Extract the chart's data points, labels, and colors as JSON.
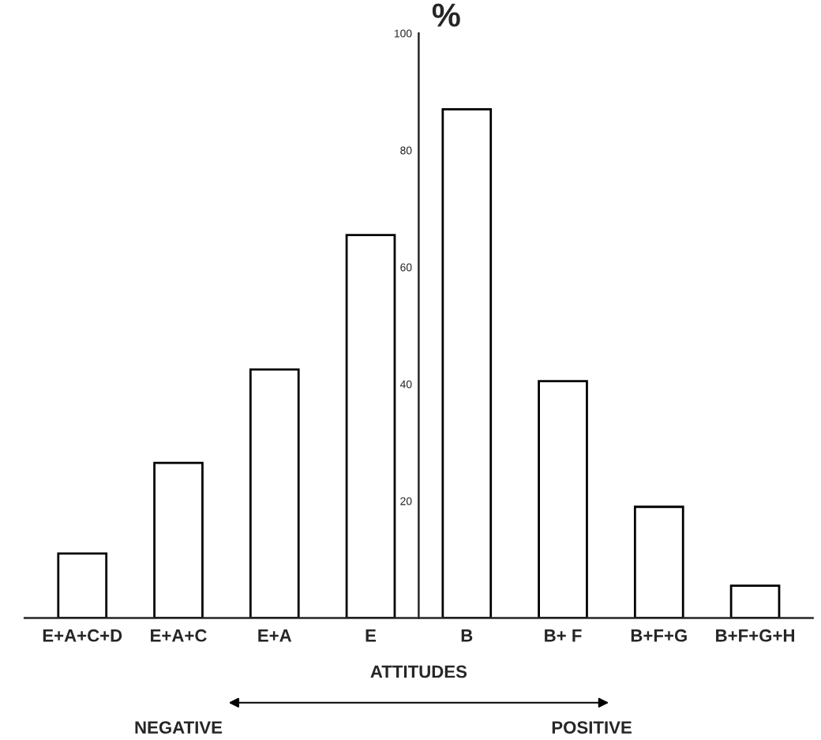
{
  "chart_data": {
    "type": "bar",
    "categories": [
      "E+A+C+D",
      "E+A+C",
      "E+A",
      "E",
      "B",
      "B+ F",
      "B+F+G",
      "B+F+G+H"
    ],
    "values": [
      11,
      26.5,
      42.5,
      65.5,
      87,
      40.5,
      19,
      5.5
    ],
    "color": "#ffffff",
    "ylim": [
      0,
      100
    ],
    "yticks": [
      20,
      40,
      60,
      80,
      100
    ],
    "xlabel": "ATTITUDES",
    "ylabel": "%",
    "annotations": [
      "NEGATIVE",
      "POSITIVE"
    ]
  }
}
